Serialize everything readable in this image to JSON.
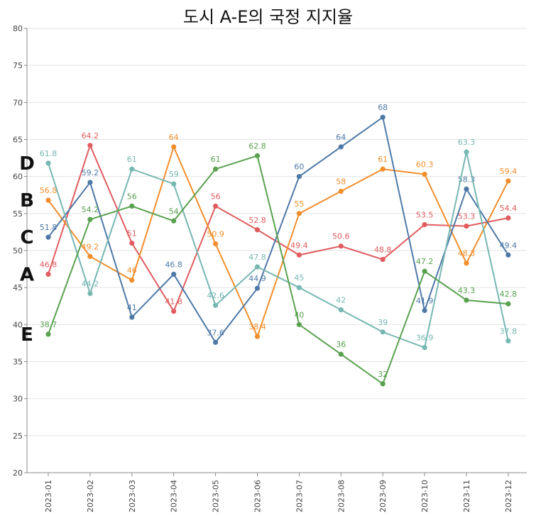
{
  "chart_data": {
    "type": "line",
    "title": "도시 A-E의 국정 지지율",
    "xlabel": "",
    "ylabel": "",
    "ylim": [
      20,
      80
    ],
    "yticks": [
      20,
      25,
      30,
      35,
      40,
      45,
      50,
      55,
      60,
      65,
      70,
      75,
      80
    ],
    "grid": true,
    "legend": "none",
    "categories": [
      "2023-01",
      "2023-02",
      "2023-03",
      "2023-04",
      "2023-05",
      "2023-06",
      "2023-07",
      "2023-08",
      "2023-09",
      "2023-10",
      "2023-11",
      "2023-12"
    ],
    "series": [
      {
        "name": "A",
        "color": "#e05c5f",
        "values": [
          46.8,
          64.2,
          51,
          41.8,
          56,
          52.8,
          49.4,
          50.6,
          48.8,
          53.5,
          53.3,
          54.4
        ]
      },
      {
        "name": "B",
        "color": "#f28e2c",
        "values": [
          56.8,
          49.2,
          46,
          64,
          50.9,
          38.4,
          55,
          58,
          61,
          60.3,
          48.3,
          59.4
        ]
      },
      {
        "name": "C",
        "color": "#4e79a7",
        "values": [
          51.8,
          59.2,
          41,
          46.8,
          37.6,
          44.9,
          60,
          64,
          68,
          41.9,
          58.3,
          49.4
        ]
      },
      {
        "name": "D",
        "color": "#76b7b2",
        "values": [
          61.8,
          44.2,
          61,
          59,
          42.6,
          47.8,
          45,
          42,
          39,
          36.9,
          63.3,
          37.8
        ]
      },
      {
        "name": "E",
        "color": "#59a14f",
        "values": [
          38.7,
          54.2,
          56,
          54,
          61,
          62.8,
          40,
          36,
          32,
          47.2,
          43.3,
          42.8
        ]
      }
    ]
  }
}
